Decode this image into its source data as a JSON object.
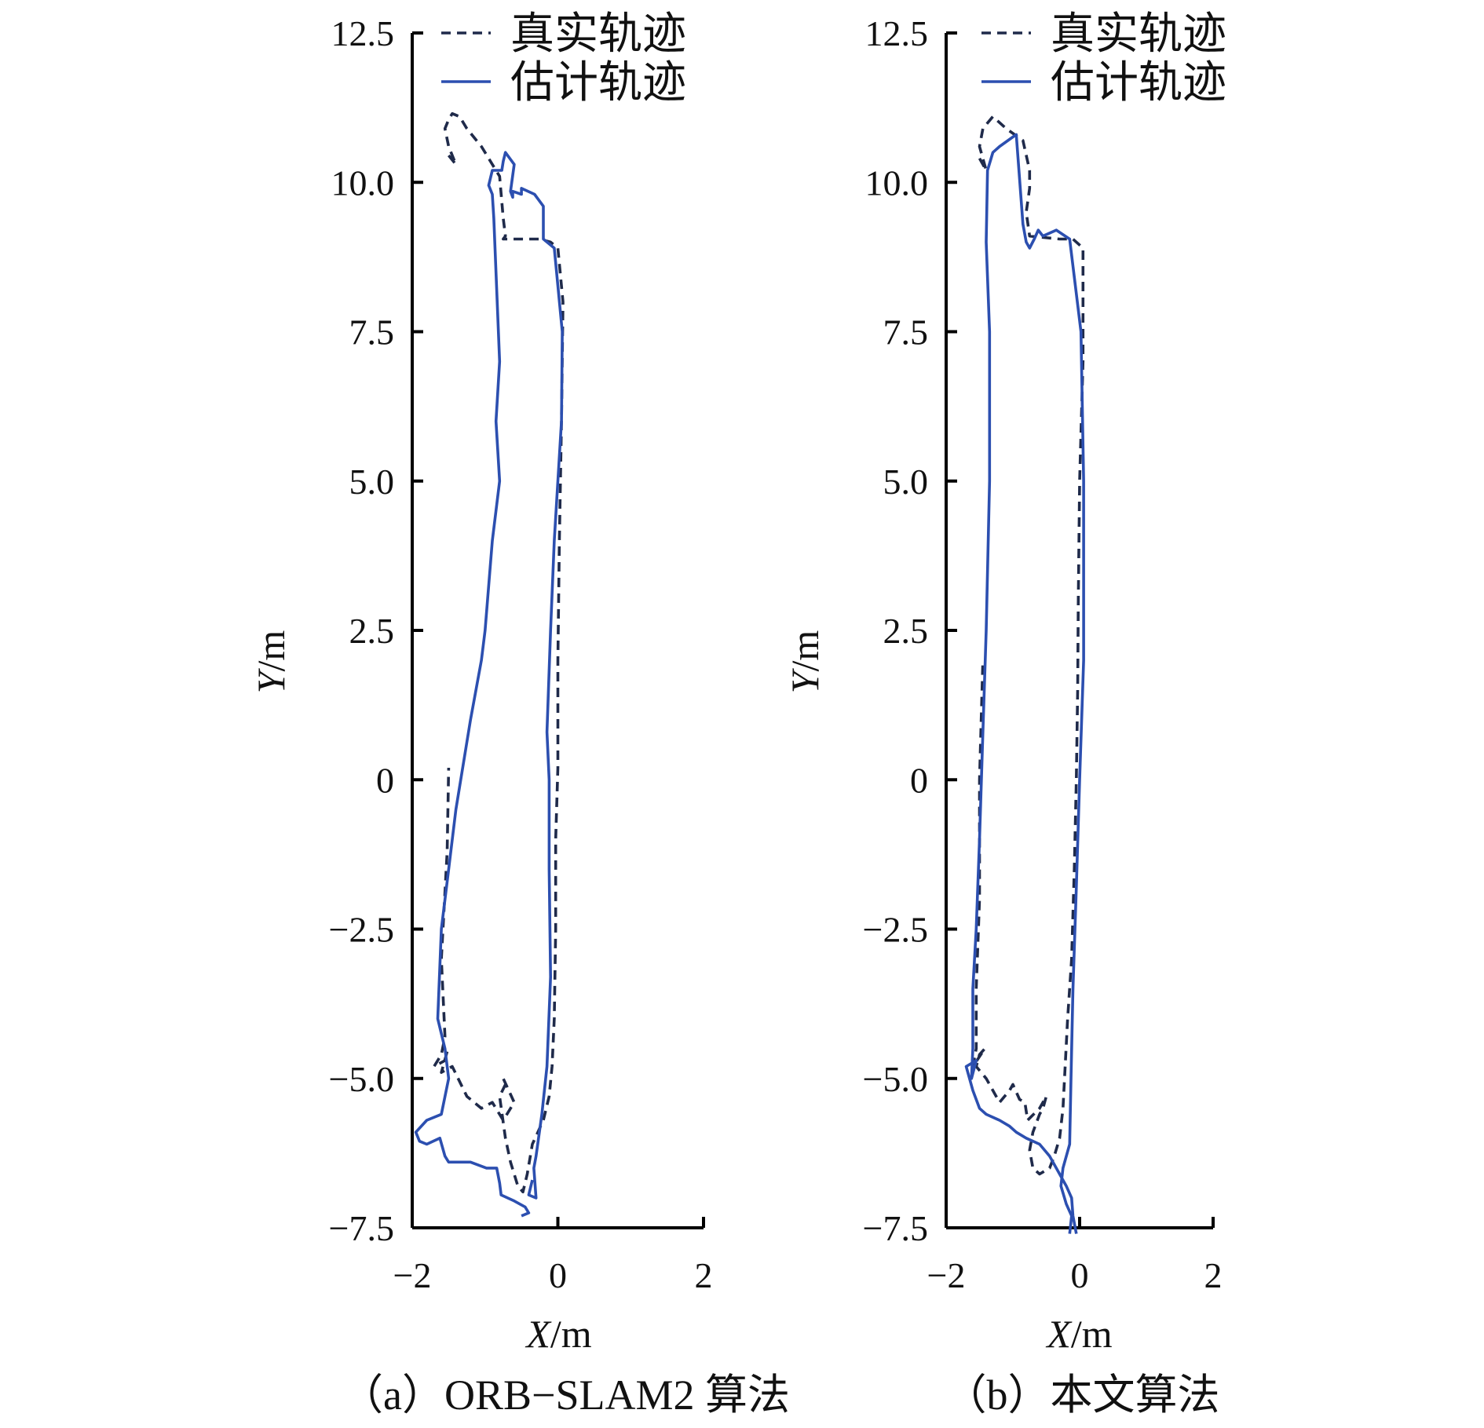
{
  "chart_data": [
    {
      "type": "line",
      "caption": "（a）ORB−SLAM2 算法",
      "xlabel_var": "X",
      "xlabel_unit": "/m",
      "ylabel_var": "Y",
      "ylabel_unit": "/m",
      "xlim": [
        -2,
        2
      ],
      "ylim": [
        -7.5,
        12.5
      ],
      "xticks": [
        "−2",
        "0",
        "2"
      ],
      "yticks": [
        "12.5",
        "10.0",
        "7.5",
        "5.0",
        "2.5",
        "0",
        "−2.5",
        "−5.0",
        "−7.5"
      ],
      "legend": {
        "position": "top-right",
        "entries": [
          "真实轨迹",
          "估计轨迹"
        ]
      },
      "series": [
        {
          "name": "真实轨迹",
          "style": "dashed",
          "color": "#1f2a4a",
          "x": [
            -1.5,
            -1.4,
            -1.5,
            -1.55,
            -1.5,
            -1.45,
            -1.35,
            -1.25,
            -1.05,
            -0.8,
            -0.75,
            -0.72,
            -0.75,
            -0.25,
            -0.1,
            0.0,
            0.07,
            0.05,
            0.02,
            0.0,
            0.0,
            -0.03,
            -0.03,
            -0.05,
            -0.08,
            -0.12,
            -0.2,
            -0.35,
            -0.42,
            -0.48,
            -0.55,
            -0.65,
            -0.72,
            -0.8,
            -0.72,
            -0.75,
            -0.6,
            -0.75,
            -0.9,
            -1.05,
            -1.25,
            -1.45,
            -1.6,
            -1.52,
            -1.55,
            -1.7,
            -1.6,
            -1.55,
            -1.6,
            -1.52,
            -1.5
          ],
          "y": [
            10.45,
            10.3,
            10.6,
            10.9,
            11.05,
            11.15,
            11.1,
            10.9,
            10.6,
            10.1,
            9.4,
            9.1,
            9.05,
            9.05,
            9.0,
            8.9,
            8.0,
            6.0,
            4.0,
            2.0,
            0.2,
            -1.0,
            -2.5,
            -4.0,
            -4.8,
            -5.3,
            -5.7,
            -6.1,
            -6.6,
            -6.9,
            -6.8,
            -6.4,
            -6.0,
            -5.3,
            -5.1,
            -5.0,
            -5.4,
            -5.7,
            -5.4,
            -5.5,
            -5.3,
            -4.8,
            -4.9,
            -4.55,
            -4.7,
            -4.8,
            -4.6,
            -4.3,
            -3.0,
            -1.2,
            0.2
          ]
        },
        {
          "name": "估计轨迹",
          "style": "solid",
          "color": "#2c4fb0",
          "x": [
            -0.35,
            -0.4,
            -0.3,
            -0.33,
            -0.3,
            -0.22,
            -0.15,
            -0.1,
            -0.12,
            -0.12,
            -0.15,
            -0.1,
            -0.05,
            0.0,
            0.05,
            0.06,
            -0.05,
            -0.2,
            -0.2,
            -0.32,
            -0.5,
            -0.5,
            -0.62,
            -0.62,
            -0.65,
            -0.6,
            -0.72,
            -0.75,
            -0.77,
            -0.9,
            -0.95,
            -0.9,
            -0.88,
            -0.8,
            -0.85,
            -0.8,
            -0.9,
            -1.0,
            -1.05,
            -1.2,
            -1.4,
            -1.5,
            -1.6,
            -1.65,
            -1.55,
            -1.5,
            -1.6,
            -1.8,
            -1.95,
            -1.9,
            -1.8,
            -1.62,
            -1.55,
            -1.5,
            -1.2,
            -0.98,
            -0.84,
            -0.8,
            -0.78,
            -0.6,
            -0.45,
            -0.4,
            -0.5
          ],
          "y": [
            -6.7,
            -6.95,
            -7.0,
            -6.5,
            -6.3,
            -5.6,
            -4.8,
            -3.3,
            -1.5,
            0.0,
            0.8,
            2.5,
            4.0,
            5.0,
            6.0,
            7.5,
            8.9,
            9.05,
            9.6,
            9.8,
            9.9,
            9.8,
            9.85,
            9.75,
            9.85,
            10.3,
            10.5,
            10.35,
            10.2,
            10.2,
            9.95,
            9.8,
            9.4,
            7.0,
            6.0,
            5.0,
            4.0,
            2.5,
            2.0,
            1.0,
            -0.5,
            -1.5,
            -2.5,
            -4.0,
            -4.5,
            -5.0,
            -5.6,
            -5.7,
            -5.9,
            -6.05,
            -6.1,
            -6.0,
            -6.3,
            -6.4,
            -6.4,
            -6.5,
            -6.5,
            -6.75,
            -6.95,
            -7.05,
            -7.15,
            -7.25,
            -7.3
          ]
        }
      ]
    },
    {
      "type": "line",
      "caption": "（b）本文算法",
      "xlabel_var": "X",
      "xlabel_unit": "/m",
      "ylabel_var": "Y",
      "ylabel_unit": "/m",
      "xlim": [
        -2,
        2
      ],
      "ylim": [
        -7.5,
        12.5
      ],
      "xticks": [
        "−2",
        "0",
        "2"
      ],
      "yticks": [
        "12.5",
        "10.0",
        "7.5",
        "5.0",
        "2.5",
        "0",
        "−2.5",
        "−5.0",
        "−7.5"
      ],
      "legend": {
        "position": "top-right",
        "entries": [
          "真实轨迹",
          "估计轨迹"
        ]
      },
      "series": [
        {
          "name": "真实轨迹",
          "style": "dashed",
          "color": "#1f2a4a",
          "x": [
            -1.5,
            -1.4,
            -1.5,
            -1.45,
            -1.3,
            -1.1,
            -0.85,
            -0.75,
            -0.75,
            -0.8,
            -0.75,
            -0.3,
            -0.1,
            0.05,
            0.05,
            0.0,
            -0.02,
            -0.03,
            -0.05,
            -0.08,
            -0.12,
            -0.18,
            -0.25,
            -0.3,
            -0.38,
            -0.45,
            -0.6,
            -0.7,
            -0.75,
            -0.7,
            -0.6,
            -0.55,
            -0.5,
            -0.6,
            -0.78,
            -0.82,
            -0.9,
            -1.0,
            -1.05,
            -1.2,
            -1.4,
            -1.55,
            -1.5,
            -1.42,
            -1.6,
            -1.55,
            -1.55,
            -1.5,
            -1.5,
            -1.45
          ],
          "y": [
            10.4,
            10.2,
            10.6,
            10.9,
            11.1,
            10.9,
            10.7,
            10.2,
            9.9,
            9.5,
            9.1,
            9.05,
            9.05,
            8.9,
            7.0,
            5.0,
            3.0,
            1.5,
            0.0,
            -1.5,
            -3.0,
            -4.0,
            -5.5,
            -6.0,
            -6.3,
            -6.5,
            -6.6,
            -6.5,
            -6.2,
            -5.9,
            -5.6,
            -5.5,
            -5.3,
            -5.5,
            -5.7,
            -5.4,
            -5.35,
            -5.1,
            -5.2,
            -5.4,
            -5.0,
            -4.8,
            -4.6,
            -4.5,
            -4.8,
            -4.5,
            -3.5,
            -2.0,
            0.0,
            2.0
          ]
        },
        {
          "name": "估计轨迹",
          "style": "solid",
          "color": "#2c4fb0",
          "x": [
            -0.15,
            -0.12,
            -0.2,
            -0.28,
            -0.25,
            -0.15,
            -0.13,
            -0.1,
            -0.05,
            0.0,
            0.06,
            0.06,
            0.02,
            -0.15,
            -0.35,
            -0.55,
            -0.62,
            -0.68,
            -0.75,
            -0.8,
            -0.85,
            -0.95,
            -1.2,
            -1.3,
            -1.38,
            -1.4,
            -1.35,
            -1.35,
            -1.4,
            -1.45,
            -1.5,
            -1.55,
            -1.6,
            -1.6,
            -1.62,
            -1.55,
            -1.7,
            -1.6,
            -1.5,
            -1.4,
            -1.2,
            -1.05,
            -0.95,
            -0.8,
            -0.6,
            -0.45,
            -0.3,
            -0.2,
            -0.12,
            -0.1,
            -0.05
          ],
          "y": [
            -7.6,
            -7.3,
            -7.1,
            -6.8,
            -6.5,
            -6.1,
            -5.0,
            -3.5,
            -1.8,
            0.0,
            2.0,
            5.0,
            7.5,
            9.05,
            9.2,
            9.1,
            9.2,
            9.05,
            8.9,
            9.0,
            9.3,
            10.8,
            10.6,
            10.5,
            10.2,
            9.0,
            7.5,
            5.0,
            2.5,
            0.8,
            -1.0,
            -2.5,
            -3.5,
            -4.5,
            -5.0,
            -4.7,
            -4.8,
            -5.2,
            -5.5,
            -5.6,
            -5.7,
            -5.8,
            -5.9,
            -6.0,
            -6.1,
            -6.3,
            -6.6,
            -6.8,
            -7.0,
            -7.3,
            -7.6
          ]
        }
      ]
    }
  ]
}
